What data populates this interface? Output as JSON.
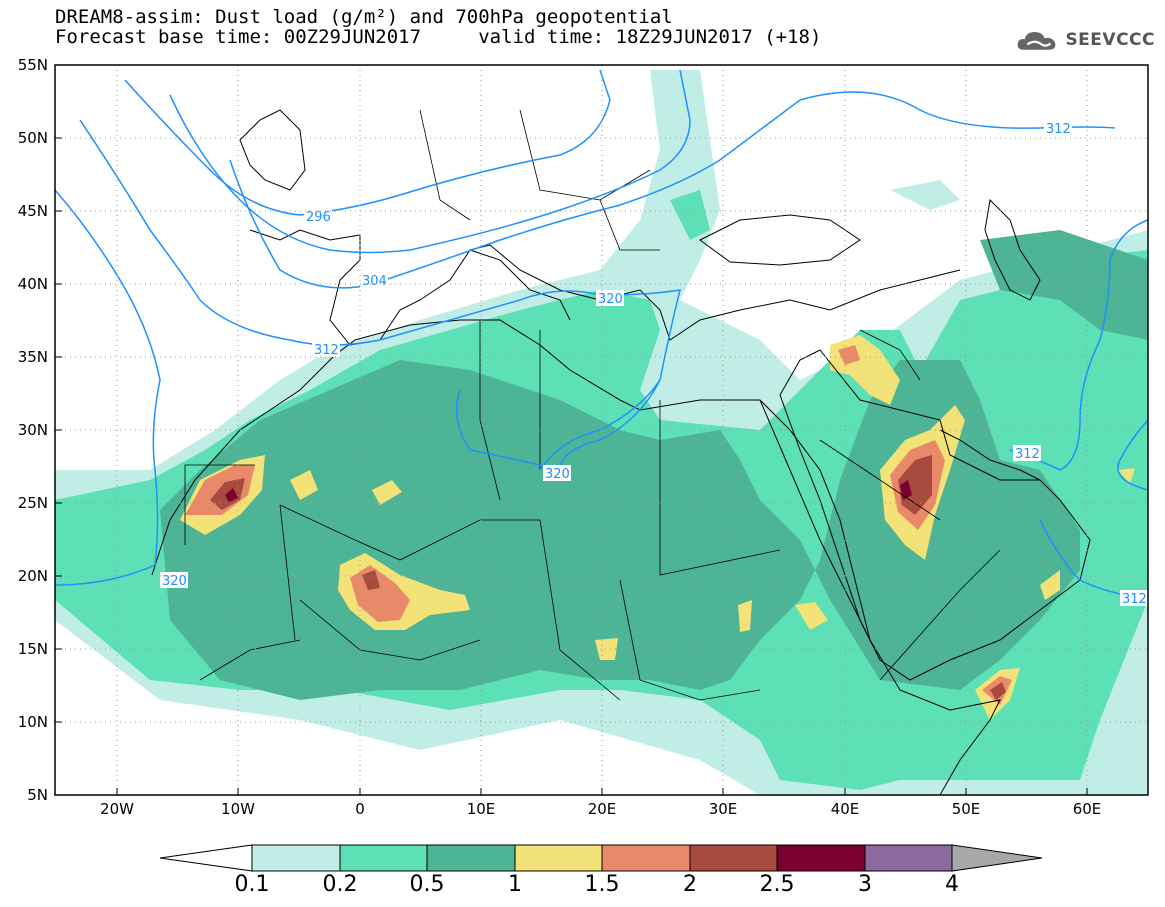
{
  "title": {
    "line1": "DREAM8-assim: Dust load (g/m²) and 700hPa geopotential",
    "line2": "Forecast base time: 00Z29JUN2017     valid time: 18Z29JUN2017 (+18)"
  },
  "logo": {
    "text": "SEEVCCC",
    "icon": "cloud-icon"
  },
  "map": {
    "lon_range": [
      -25,
      65
    ],
    "lat_range": [
      5,
      55
    ],
    "lat_labels": [
      "55N",
      "50N",
      "45N",
      "40N",
      "35N",
      "30N",
      "25N",
      "20N",
      "15N",
      "10N",
      "5N"
    ],
    "lon_labels": [
      "20W",
      "10W",
      "0",
      "10E",
      "20E",
      "30E",
      "40E",
      "50E",
      "60E"
    ],
    "contour_labels": [
      "296",
      "304",
      "312",
      "312",
      "320",
      "320",
      "320",
      "312",
      "312"
    ],
    "colors": {
      "ocean_land": "#ffffff",
      "coast": "#000000",
      "contour": "#1e90ff"
    }
  },
  "colorbar": {
    "levels": [
      "0.1",
      "0.2",
      "0.5",
      "1",
      "1.5",
      "2",
      "2.5",
      "3",
      "4"
    ],
    "colors": [
      "#c0eee6",
      "#5ee0b6",
      "#4db595",
      "#f2e277",
      "#e88a6a",
      "#a94a3e",
      "#7a0030",
      "#8c6aa0",
      "#a8a8a8"
    ]
  }
}
